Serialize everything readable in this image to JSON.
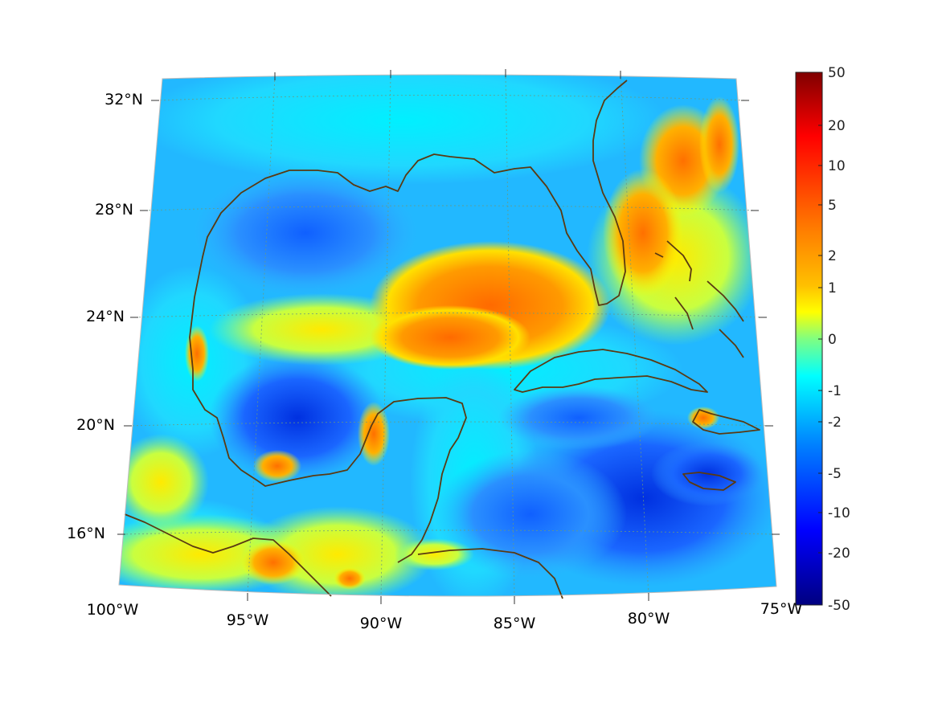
{
  "map": {
    "lat_labels": [
      "32°N",
      "28°N",
      "24°N",
      "20°N",
      "16°N"
    ],
    "lon_labels": [
      "100°W",
      "95°W",
      "90°W",
      "85°W",
      "80°W",
      "75°W"
    ],
    "extent": {
      "lon_min": -100,
      "lon_max": -75,
      "lat_min": 14,
      "lat_max": 33
    },
    "coastline_color": "#5a3a12",
    "gridline_color": "#7aa080"
  },
  "colorbar": {
    "tick_labels": [
      "50",
      "20",
      "10",
      "5",
      "2",
      "1",
      "0",
      "-1",
      "-2",
      "-5",
      "-10",
      "-20",
      "-50"
    ],
    "colors": [
      "#800000",
      "#ff0000",
      "#ff8000",
      "#ffff00",
      "#80ff80",
      "#00ffff",
      "#0080ff",
      "#0000ff",
      "#000080"
    ]
  }
}
